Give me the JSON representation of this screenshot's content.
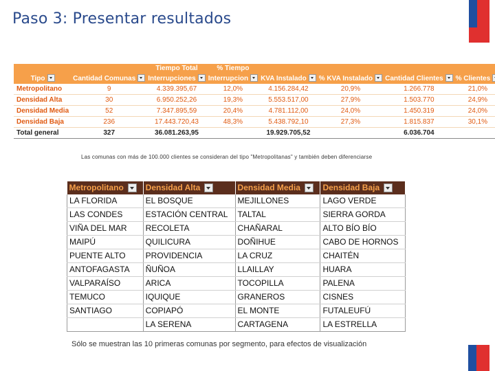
{
  "title": "Paso 3: Presentar resultados",
  "colors": {
    "title": "#2a4a8c",
    "orange_header": "#f6a04a",
    "orange_text": "#e05a10",
    "brown_header": "#5b2e1d",
    "flag_blue": "#1f4fa0",
    "flag_red": "#e0302f"
  },
  "table1": {
    "headers_top": [
      "",
      "",
      "Tiempo Total",
      "% Tiempo",
      "",
      "",
      "",
      ""
    ],
    "headers": [
      "Tipo",
      "Cantidad Comunas",
      "Interrupciones",
      "Interrupcion",
      "KVA Instalado",
      "% KVA Instalado",
      "Cantidad Clientes",
      "% Clientes"
    ],
    "rows": [
      [
        "Metropolitano",
        "9",
        "4.339.395,67",
        "12,0%",
        "4.156.284,42",
        "20,9%",
        "1.266.778",
        "21,0%"
      ],
      [
        "Densidad Alta",
        "30",
        "6.950.252,26",
        "19,3%",
        "5.553.517,00",
        "27,9%",
        "1.503.770",
        "24,9%"
      ],
      [
        "Densidad Media",
        "52",
        "7.347.895,59",
        "20,4%",
        "4.781.112,00",
        "24,0%",
        "1.450.319",
        "24,0%"
      ],
      [
        "Densidad Baja",
        "236",
        "17.443.720,43",
        "48,3%",
        "5.438.792,10",
        "27,3%",
        "1.815.837",
        "30,1%"
      ]
    ],
    "total": [
      "Total general",
      "327",
      "36.081.263,95",
      "",
      "19.929.705,52",
      "",
      "6.036.704",
      ""
    ]
  },
  "note1": "Las comunas con más de 100.000 clientes se consideran del tipo \"Metropolitanas\" y también deben diferenciarse",
  "table2": {
    "headers": [
      "Metropolitano",
      "Densidad Alta",
      "Densidad Media",
      "Densidad Baja"
    ],
    "rows": [
      [
        "LA FLORIDA",
        "EL BOSQUE",
        "MEJILLONES",
        "LAGO VERDE"
      ],
      [
        "LAS CONDES",
        "ESTACIÓN CENTRAL",
        "TALTAL",
        "SIERRA GORDA"
      ],
      [
        "VIÑA DEL MAR",
        "RECOLETA",
        "CHAÑARAL",
        "ALTO BÍO BÍO"
      ],
      [
        "MAIPÚ",
        "QUILICURA",
        "DOÑIHUE",
        "CABO DE HORNOS"
      ],
      [
        "PUENTE ALTO",
        "PROVIDENCIA",
        "LA CRUZ",
        "CHAITÉN"
      ],
      [
        "ANTOFAGASTA",
        "ÑUÑOA",
        "LLAILLAY",
        "HUARA"
      ],
      [
        "VALPARAÍSO",
        "ARICA",
        "TOCOPILLA",
        "PALENA"
      ],
      [
        "TEMUCO",
        "IQUIQUE",
        "GRANEROS",
        "CISNES"
      ],
      [
        "SANTIAGO",
        "COPIAPÓ",
        "EL MONTE",
        "FUTALEUFÚ"
      ],
      [
        "",
        "LA SERENA",
        "CARTAGENA",
        "LA ESTRELLA"
      ]
    ]
  },
  "note2": "Sólo se muestran las 10 primeras comunas por segmento, para efectos de visualización"
}
